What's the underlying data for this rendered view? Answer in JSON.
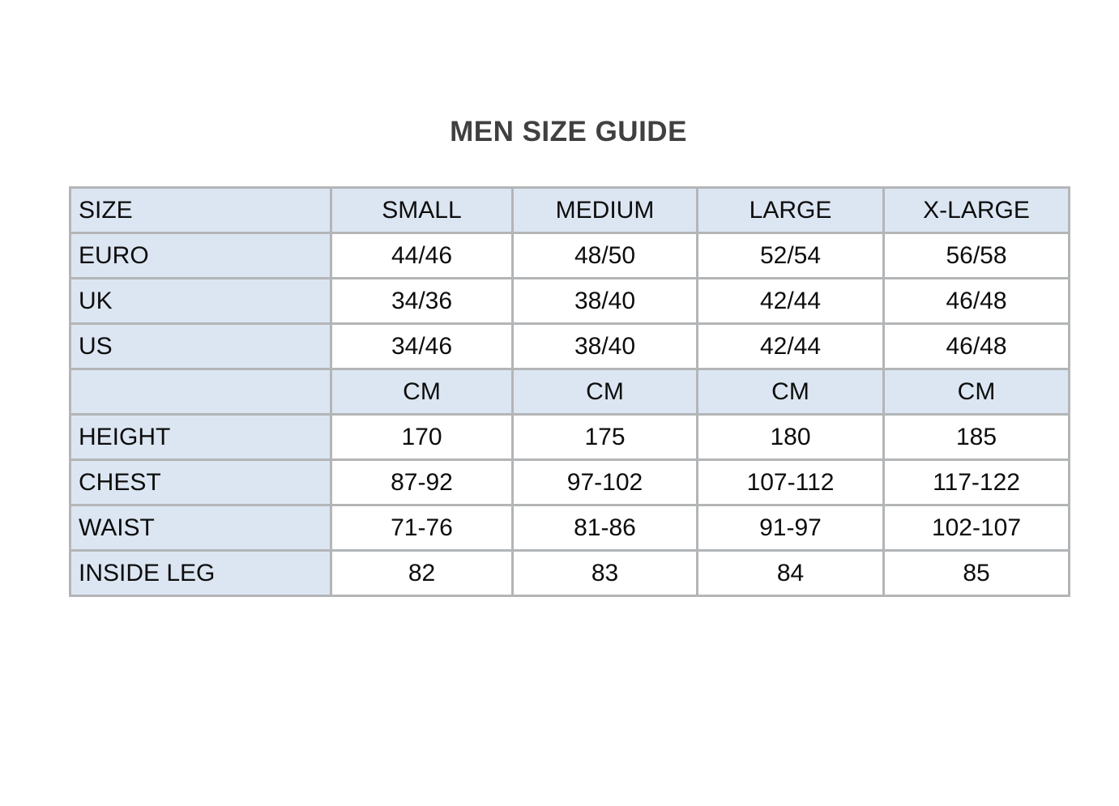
{
  "page_title": "MEN SIZE GUIDE",
  "colors": {
    "highlight_bg": "#dce6f2",
    "cell_bg": "#ffffff",
    "border": "#b3b5b7",
    "title_text": "#404040",
    "cell_text": "#0d0d0d"
  },
  "table": {
    "columns": [
      "SIZE",
      "SMALL",
      "MEDIUM",
      "LARGE",
      "X-LARGE"
    ],
    "rows": [
      {
        "label": "EURO",
        "values": [
          "44/46",
          "48/50",
          "52/54",
          "56/58"
        ],
        "highlight": false
      },
      {
        "label": "UK",
        "values": [
          "34/36",
          "38/40",
          "42/44",
          "46/48"
        ],
        "highlight": false
      },
      {
        "label": "US",
        "values": [
          "34/46",
          "38/40",
          "42/44",
          "46/48"
        ],
        "highlight": false
      },
      {
        "label": "",
        "values": [
          "CM",
          "CM",
          "CM",
          "CM"
        ],
        "highlight": true
      },
      {
        "label": "HEIGHT",
        "values": [
          "170",
          "175",
          "180",
          "185"
        ],
        "highlight": false
      },
      {
        "label": "CHEST",
        "values": [
          "87-92",
          "97-102",
          "107-112",
          "117-122"
        ],
        "highlight": false
      },
      {
        "label": "WAIST",
        "values": [
          "71-76",
          "81-86",
          "91-97",
          "102-107"
        ],
        "highlight": false
      },
      {
        "label": "INSIDE LEG",
        "values": [
          "82",
          "83",
          "84",
          "85"
        ],
        "highlight": false
      }
    ]
  }
}
